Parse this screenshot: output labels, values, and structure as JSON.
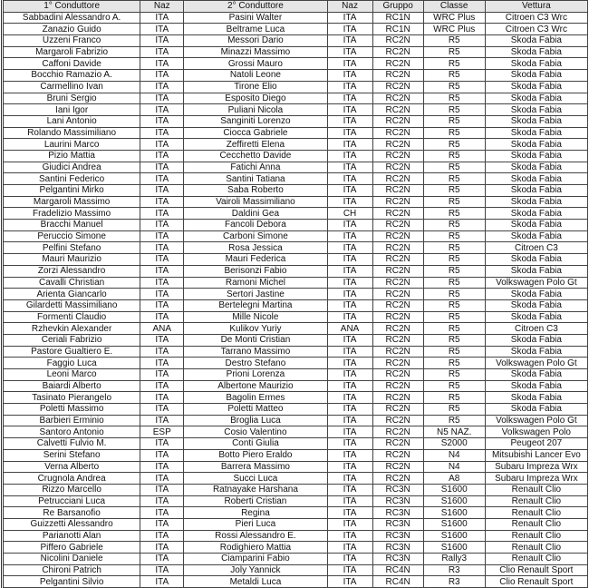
{
  "headers": [
    "1° Conduttore",
    "Naz",
    "2° Conduttore",
    "Naz",
    "Gruppo",
    "Classe",
    "Vettura"
  ],
  "rows": [
    [
      "Sabbadini Alessandro A.",
      "ITA",
      "Pasini Walter",
      "ITA",
      "RC1N",
      "WRC Plus",
      "Citroen C3 Wrc"
    ],
    [
      "Zanazio Guido",
      "ITA",
      "Beltrame Luca",
      "ITA",
      "RC1N",
      "WRC Plus",
      "Citroen C3 Wrc"
    ],
    [
      "Uzzeni Franco",
      "ITA",
      "Messori Dario",
      "ITA",
      "RC2N",
      "R5",
      "Skoda Fabia"
    ],
    [
      "Margaroli Fabrizio",
      "ITA",
      "Minazzi Massimo",
      "ITA",
      "RC2N",
      "R5",
      "Skoda Fabia"
    ],
    [
      "Caffoni Davide",
      "ITA",
      "Grossi Mauro",
      "ITA",
      "RC2N",
      "R5",
      "Skoda Fabia"
    ],
    [
      "Bocchio Ramazio A.",
      "ITA",
      "Natoli Leone",
      "ITA",
      "RC2N",
      "R5",
      "Skoda Fabia"
    ],
    [
      "Carmellino Ivan",
      "ITA",
      "Tirone Elio",
      "ITA",
      "RC2N",
      "R5",
      "Skoda Fabia"
    ],
    [
      "Bruni Sergio",
      "ITA",
      "Esposito Diego",
      "ITA",
      "RC2N",
      "R5",
      "Skoda Fabia"
    ],
    [
      "Iani Igor",
      "ITA",
      "Puliani Nicola",
      "ITA",
      "RC2N",
      "R5",
      "Skoda Fabia"
    ],
    [
      "Lani Antonio",
      "ITA",
      "Sanginiti Lorenzo",
      "ITA",
      "RC2N",
      "R5",
      "Skoda Fabia"
    ],
    [
      "Rolando Massimiliano",
      "ITA",
      "Ciocca Gabriele",
      "ITA",
      "RC2N",
      "R5",
      "Skoda Fabia"
    ],
    [
      "Laurini Marco",
      "ITA",
      "Zeffiretti Elena",
      "ITA",
      "RC2N",
      "R5",
      "Skoda Fabia"
    ],
    [
      "Pizio Mattia",
      "ITA",
      "Cecchetto Davide",
      "ITA",
      "RC2N",
      "R5",
      "Skoda Fabia"
    ],
    [
      "Giudici Andrea",
      "ITA",
      "Fatichi Anna",
      "ITA",
      "RC2N",
      "R5",
      "Skoda Fabia"
    ],
    [
      "Santini Federico",
      "ITA",
      "Santini Tatiana",
      "ITA",
      "RC2N",
      "R5",
      "Skoda Fabia"
    ],
    [
      "Pelgantini Mirko",
      "ITA",
      "Saba Roberto",
      "ITA",
      "RC2N",
      "R5",
      "Skoda Fabia"
    ],
    [
      "Margaroli Massimo",
      "ITA",
      "Vairoli Massimiliano",
      "ITA",
      "RC2N",
      "R5",
      "Skoda Fabia"
    ],
    [
      "Fradelizio Massimo",
      "ITA",
      "Daldini Gea",
      "CH",
      "RC2N",
      "R5",
      "Skoda Fabia"
    ],
    [
      "Bracchi Manuel",
      "ITA",
      "Fancoli Debora",
      "ITA",
      "RC2N",
      "R5",
      "Skoda Fabia"
    ],
    [
      "Peruccio Simone",
      "ITA",
      "Carboni Simone",
      "ITA",
      "RC2N",
      "R5",
      "Skoda Fabia"
    ],
    [
      "Pelfini Stefano",
      "ITA",
      "Rosa Jessica",
      "ITA",
      "RC2N",
      "R5",
      "Citroen C3"
    ],
    [
      "Mauri Maurizio",
      "ITA",
      "Mauri Federica",
      "ITA",
      "RC2N",
      "R5",
      "Skoda Fabia"
    ],
    [
      "Zorzi Alessandro",
      "ITA",
      "Berisonzi Fabio",
      "ITA",
      "RC2N",
      "R5",
      "Skoda Fabia"
    ],
    [
      "Cavalli Christian",
      "ITA",
      "Ramoni Michel",
      "ITA",
      "RC2N",
      "R5",
      "Volkswagen Polo Gt"
    ],
    [
      "Arienta Giancarlo",
      "ITA",
      "Sertori Jastine",
      "ITA",
      "RC2N",
      "R5",
      "Skoda Fabia"
    ],
    [
      "Gilardetti Massimiliano",
      "ITA",
      "Bertelegni Martina",
      "ITA",
      "RC2N",
      "R5",
      "Skoda Fabia"
    ],
    [
      "Formenti Claudio",
      "ITA",
      "Mille Nicole",
      "ITA",
      "RC2N",
      "R5",
      "Skoda Fabia"
    ],
    [
      "Rzhevkin Alexander",
      "ANA",
      "Kulikov Yuriy",
      "ANA",
      "RC2N",
      "R5",
      "Citroen C3"
    ],
    [
      "Ceriali Fabrizio",
      "ITA",
      "De Monti Cristian",
      "ITA",
      "RC2N",
      "R5",
      "Skoda Fabia"
    ],
    [
      "Pastore Gualtiero E.",
      "ITA",
      "Tarrano Massimo",
      "ITA",
      "RC2N",
      "R5",
      "Skoda Fabia"
    ],
    [
      "Faggio Luca",
      "ITA",
      "Destro Stefano",
      "ITA",
      "RC2N",
      "R5",
      "Volkswagen Polo Gt"
    ],
    [
      "Leoni Marco",
      "ITA",
      "Prioni Lorenza",
      "ITA",
      "RC2N",
      "R5",
      "Skoda Fabia"
    ],
    [
      "Baiardi Alberto",
      "ITA",
      "Albertone Maurizio",
      "ITA",
      "RC2N",
      "R5",
      "Skoda Fabia"
    ],
    [
      "Tasinato Pierangelo",
      "ITA",
      "Bagolin Ermes",
      "ITA",
      "RC2N",
      "R5",
      "Skoda Fabia"
    ],
    [
      "Poletti Massimo",
      "ITA",
      "Poletti Matteo",
      "ITA",
      "RC2N",
      "R5",
      "Skoda Fabia"
    ],
    [
      "Barbieri Erminio",
      "ITA",
      "Broglia Luca",
      "ITA",
      "RC2N",
      "R5",
      "Volkswagen Polo Gt"
    ],
    [
      "Santoro Antonio",
      "ESP",
      "Cosio Valentino",
      "ITA",
      "RC2N",
      "N5 NAZ.",
      "Volkswagen Polo"
    ],
    [
      "Calvetti Fulvio M.",
      "ITA",
      "Conti Giulia",
      "ITA",
      "RC2N",
      "S2000",
      "Peugeot 207"
    ],
    [
      "Serini Stefano",
      "ITA",
      "Botto Piero Eraldo",
      "ITA",
      "RC2N",
      "N4",
      "Mitsubishi Lancer Evo"
    ],
    [
      "Verna Alberto",
      "ITA",
      "Barrera Massimo",
      "ITA",
      "RC2N",
      "N4",
      "Subaru Impreza Wrx"
    ],
    [
      "Crugnola Andrea",
      "ITA",
      "Succi Luca",
      "ITA",
      "RC2N",
      "A8",
      "Subaru Impreza Wrx"
    ],
    [
      "Rizzo Marcello",
      "ITA",
      "Ratnayake Harshana",
      "ITA",
      "RC3N",
      "S1600",
      "Renault Clio"
    ],
    [
      "Petrucciani Luca",
      "ITA",
      "Roberti Cristian",
      "ITA",
      "RC3N",
      "S1600",
      "Renault Clio"
    ],
    [
      "Re Barsanofio",
      "ITA",
      "Regina",
      "ITA",
      "RC3N",
      "S1600",
      "Renault Clio"
    ],
    [
      "Guizzetti Alessandro",
      "ITA",
      "Pieri Luca",
      "ITA",
      "RC3N",
      "S1600",
      "Renault Clio"
    ],
    [
      "Parianotti Alan",
      "ITA",
      "Rossi Alessandro E.",
      "ITA",
      "RC3N",
      "S1600",
      "Renault Clio"
    ],
    [
      "Piffero Gabriele",
      "ITA",
      "Rodighiero Mattia",
      "ITA",
      "RC3N",
      "S1600",
      "Renault Clio"
    ],
    [
      "Nicolini Daniele",
      "ITA",
      "Ciamparini Fabio",
      "ITA",
      "RC3N",
      "Rally3",
      "Renault Clio"
    ],
    [
      "Chironi Patrich",
      "ITA",
      "Joly Yannick",
      "ITA",
      "RC4N",
      "R3",
      "Clio Renault Sport"
    ],
    [
      "Pelgantini Silvio",
      "ITA",
      "Metaldi Luca",
      "ITA",
      "RC4N",
      "R3",
      "Clio Renault Sport"
    ]
  ]
}
